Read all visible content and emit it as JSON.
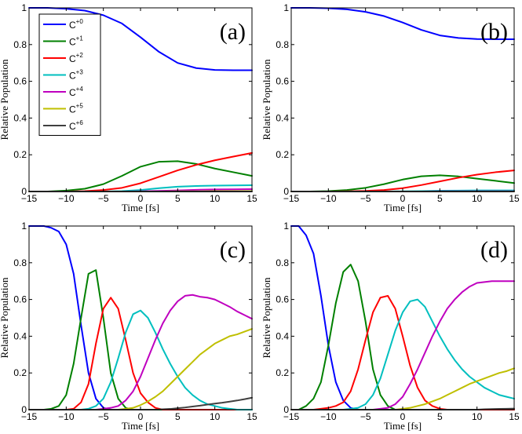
{
  "chart_data": [
    {
      "type": "line",
      "panel_label": "(a)",
      "xlabel": "Time [fs]",
      "ylabel": "Relative Population",
      "xlim": [
        -15,
        15
      ],
      "ylim": [
        0,
        1
      ],
      "xticks": [
        "−15",
        "−10",
        "−5",
        "0",
        "5",
        "10",
        "15"
      ],
      "yticks": [
        "0",
        "0.2",
        "0.4",
        "0.6",
        "0.8",
        "1"
      ],
      "legend_position": "top-left",
      "x": [
        -15,
        -12.5,
        -10,
        -7.5,
        -5,
        -2.5,
        0,
        2.5,
        5,
        7.5,
        10,
        12.5,
        15
      ],
      "series": [
        {
          "name": "C+0",
          "base": "C",
          "sup": "+0",
          "color": "#0000ff",
          "values": [
            1.0,
            1.0,
            0.995,
            0.985,
            0.96,
            0.915,
            0.84,
            0.76,
            0.7,
            0.672,
            0.662,
            0.66,
            0.66
          ]
        },
        {
          "name": "C+1",
          "base": "C",
          "sup": "+1",
          "color": "#008000",
          "values": [
            0,
            0,
            0.005,
            0.015,
            0.04,
            0.085,
            0.135,
            0.162,
            0.165,
            0.15,
            0.125,
            0.105,
            0.085
          ]
        },
        {
          "name": "C+2",
          "base": "C",
          "sup": "+2",
          "color": "#ff0000",
          "values": [
            0,
            0,
            0,
            0.002,
            0.008,
            0.02,
            0.045,
            0.08,
            0.115,
            0.145,
            0.17,
            0.19,
            0.21
          ]
        },
        {
          "name": "C+3",
          "base": "C",
          "sup": "+3",
          "color": "#00bfbf",
          "values": [
            0,
            0,
            0,
            0,
            0,
            0.002,
            0.008,
            0.018,
            0.026,
            0.03,
            0.032,
            0.033,
            0.034
          ]
        },
        {
          "name": "C+4",
          "base": "C",
          "sup": "+4",
          "color": "#bf00bf",
          "values": [
            0,
            0,
            0,
            0,
            0,
            0,
            0.001,
            0.003,
            0.006,
            0.009,
            0.011,
            0.012,
            0.013
          ]
        },
        {
          "name": "C+5",
          "base": "C",
          "sup": "+5",
          "color": "#bfbf00",
          "values": [
            0,
            0,
            0,
            0,
            0,
            0,
            0,
            0,
            0.001,
            0.001,
            0.002,
            0.002,
            0.002
          ]
        },
        {
          "name": "C+6",
          "base": "C",
          "sup": "+6",
          "color": "#404040",
          "values": [
            0,
            0,
            0,
            0,
            0,
            0,
            0,
            0,
            0,
            0,
            0,
            0,
            0
          ]
        }
      ]
    },
    {
      "type": "line",
      "panel_label": "(b)",
      "xlabel": "Time [fs]",
      "ylabel": "Relative Population",
      "xlim": [
        -15,
        15
      ],
      "ylim": [
        0,
        1
      ],
      "xticks": [
        "−15",
        "−10",
        "−5",
        "0",
        "5",
        "10",
        "15"
      ],
      "yticks": [
        "0",
        "0.2",
        "0.4",
        "0.6",
        "0.8",
        "1"
      ],
      "x": [
        -15,
        -12.5,
        -10,
        -7.5,
        -5,
        -2.5,
        0,
        2.5,
        5,
        7.5,
        10,
        12.5,
        15
      ],
      "series": [
        {
          "name": "C+0",
          "color": "#0000ff",
          "values": [
            1.0,
            1.0,
            0.998,
            0.992,
            0.978,
            0.955,
            0.92,
            0.88,
            0.85,
            0.836,
            0.83,
            0.829,
            0.829
          ]
        },
        {
          "name": "C+1",
          "color": "#008000",
          "values": [
            0,
            0,
            0.002,
            0.008,
            0.02,
            0.04,
            0.065,
            0.083,
            0.088,
            0.082,
            0.07,
            0.058,
            0.046
          ]
        },
        {
          "name": "C+2",
          "color": "#ff0000",
          "values": [
            0,
            0,
            0,
            0.001,
            0.003,
            0.008,
            0.018,
            0.035,
            0.055,
            0.075,
            0.092,
            0.105,
            0.115
          ]
        },
        {
          "name": "C+3",
          "color": "#00bfbf",
          "values": [
            0,
            0,
            0,
            0,
            0,
            0,
            0.001,
            0.002,
            0.004,
            0.005,
            0.006,
            0.006,
            0.006
          ]
        },
        {
          "name": "C+4",
          "color": "#bf00bf",
          "values": [
            0,
            0,
            0,
            0,
            0,
            0,
            0,
            0,
            0.001,
            0.001,
            0.001,
            0.001,
            0.001
          ]
        },
        {
          "name": "C+5",
          "color": "#bfbf00",
          "values": [
            0,
            0,
            0,
            0,
            0,
            0,
            0,
            0,
            0,
            0,
            0,
            0,
            0
          ]
        },
        {
          "name": "C+6",
          "color": "#404040",
          "values": [
            0,
            0,
            0,
            0,
            0,
            0,
            0,
            0,
            0,
            0,
            0,
            0,
            0
          ]
        }
      ]
    },
    {
      "type": "line",
      "panel_label": "(c)",
      "xlabel": "Time [fs]",
      "ylabel": "Relative Population",
      "xlim": [
        -15,
        15
      ],
      "ylim": [
        0,
        1
      ],
      "xticks": [
        "−15",
        "−10",
        "−5",
        "0",
        "5",
        "10",
        "15"
      ],
      "yticks": [
        "0",
        "0.2",
        "0.4",
        "0.6",
        "0.8",
        "1"
      ],
      "x": [
        -15,
        -14,
        -13,
        -12,
        -11,
        -10,
        -9,
        -8,
        -7,
        -6,
        -5,
        -4,
        -3,
        -2,
        -1,
        0,
        1,
        2,
        3,
        4,
        5,
        6,
        7,
        8,
        9,
        10,
        11,
        12,
        13,
        14,
        15
      ],
      "series": [
        {
          "name": "C+0",
          "color": "#0000ff",
          "values": [
            1.0,
            1.0,
            1.0,
            0.99,
            0.97,
            0.9,
            0.74,
            0.46,
            0.2,
            0.06,
            0.01,
            0,
            0,
            0,
            0,
            0,
            0,
            0,
            0,
            0,
            0,
            0,
            0,
            0,
            0,
            0,
            0,
            0,
            0,
            0,
            0
          ]
        },
        {
          "name": "C+1",
          "color": "#008000",
          "values": [
            0,
            0,
            0,
            0.005,
            0.02,
            0.08,
            0.25,
            0.5,
            0.74,
            0.76,
            0.5,
            0.2,
            0.06,
            0.01,
            0,
            0,
            0,
            0,
            0,
            0,
            0,
            0,
            0,
            0,
            0,
            0,
            0,
            0,
            0,
            0,
            0
          ]
        },
        {
          "name": "C+2",
          "color": "#ff0000",
          "values": [
            0,
            0,
            0,
            0,
            0,
            0,
            0.005,
            0.04,
            0.14,
            0.36,
            0.55,
            0.61,
            0.55,
            0.38,
            0.2,
            0.09,
            0.04,
            0.01,
            0,
            0,
            0,
            0,
            0,
            0,
            0,
            0,
            0,
            0,
            0,
            0,
            0
          ]
        },
        {
          "name": "C+3",
          "color": "#00bfbf",
          "values": [
            0,
            0,
            0,
            0,
            0,
            0,
            0,
            0,
            0.005,
            0.02,
            0.06,
            0.15,
            0.28,
            0.42,
            0.52,
            0.54,
            0.5,
            0.42,
            0.33,
            0.25,
            0.18,
            0.12,
            0.08,
            0.05,
            0.03,
            0.02,
            0.01,
            0.005,
            0,
            0,
            0
          ]
        },
        {
          "name": "C+4",
          "color": "#bf00bf",
          "values": [
            0,
            0,
            0,
            0,
            0,
            0,
            0,
            0,
            0,
            0,
            0.005,
            0.01,
            0.02,
            0.05,
            0.1,
            0.18,
            0.28,
            0.38,
            0.47,
            0.54,
            0.59,
            0.62,
            0.625,
            0.615,
            0.61,
            0.6,
            0.58,
            0.56,
            0.535,
            0.515,
            0.495
          ]
        },
        {
          "name": "C+5",
          "color": "#bfbf00",
          "values": [
            0,
            0,
            0,
            0,
            0,
            0,
            0,
            0,
            0,
            0,
            0,
            0,
            0,
            0.005,
            0.01,
            0.025,
            0.045,
            0.07,
            0.1,
            0.14,
            0.18,
            0.22,
            0.26,
            0.3,
            0.33,
            0.36,
            0.38,
            0.4,
            0.41,
            0.425,
            0.44
          ]
        },
        {
          "name": "C+6",
          "color": "#404040",
          "values": [
            0,
            0,
            0,
            0,
            0,
            0,
            0,
            0,
            0,
            0,
            0,
            0,
            0,
            0,
            0,
            0,
            0,
            0,
            0.002,
            0.004,
            0.008,
            0.012,
            0.017,
            0.022,
            0.028,
            0.033,
            0.038,
            0.044,
            0.05,
            0.057,
            0.065
          ]
        }
      ]
    },
    {
      "type": "line",
      "panel_label": "(d)",
      "xlabel": "Time [fs]",
      "ylabel": "Relative Population",
      "xlim": [
        -15,
        15
      ],
      "ylim": [
        0,
        1
      ],
      "xticks": [
        "−15",
        "−10",
        "−5",
        "0",
        "5",
        "10",
        "15"
      ],
      "yticks": [
        "0",
        "0.2",
        "0.4",
        "0.6",
        "0.8",
        "1"
      ],
      "x": [
        -15,
        -14,
        -13,
        -12,
        -11,
        -10,
        -9,
        -8,
        -7,
        -6,
        -5,
        -4,
        -3,
        -2,
        -1,
        0,
        1,
        2,
        3,
        4,
        5,
        6,
        7,
        8,
        9,
        10,
        11,
        12,
        13,
        14,
        15
      ],
      "series": [
        {
          "name": "C+0",
          "color": "#0000ff",
          "values": [
            1.0,
            1.0,
            0.95,
            0.85,
            0.62,
            0.35,
            0.15,
            0.05,
            0.01,
            0,
            0,
            0,
            0,
            0,
            0,
            0,
            0,
            0,
            0,
            0,
            0,
            0,
            0,
            0,
            0,
            0,
            0,
            0,
            0,
            0,
            0
          ]
        },
        {
          "name": "C+1",
          "color": "#008000",
          "values": [
            0,
            0,
            0.02,
            0.06,
            0.15,
            0.35,
            0.58,
            0.75,
            0.79,
            0.7,
            0.48,
            0.22,
            0.08,
            0.02,
            0,
            0,
            0,
            0,
            0,
            0,
            0,
            0,
            0,
            0,
            0,
            0,
            0,
            0,
            0,
            0,
            0
          ]
        },
        {
          "name": "C+2",
          "color": "#ff0000",
          "values": [
            0,
            0,
            0,
            0,
            0.005,
            0.01,
            0.02,
            0.04,
            0.1,
            0.22,
            0.38,
            0.53,
            0.61,
            0.62,
            0.55,
            0.4,
            0.24,
            0.12,
            0.05,
            0.02,
            0.005,
            0,
            0,
            0,
            0,
            0,
            0,
            0,
            0,
            0,
            0
          ]
        },
        {
          "name": "C+3",
          "color": "#00bfbf",
          "values": [
            0,
            0,
            0,
            0,
            0,
            0,
            0,
            0,
            0.005,
            0.01,
            0.03,
            0.08,
            0.17,
            0.3,
            0.43,
            0.53,
            0.59,
            0.6,
            0.56,
            0.48,
            0.4,
            0.33,
            0.27,
            0.22,
            0.18,
            0.15,
            0.12,
            0.1,
            0.08,
            0.07,
            0.06
          ]
        },
        {
          "name": "C+4",
          "color": "#bf00bf",
          "values": [
            0,
            0,
            0,
            0,
            0,
            0,
            0,
            0,
            0,
            0,
            0,
            0,
            0.005,
            0.01,
            0.03,
            0.07,
            0.14,
            0.22,
            0.31,
            0.4,
            0.48,
            0.55,
            0.6,
            0.64,
            0.67,
            0.69,
            0.695,
            0.7,
            0.7,
            0.7,
            0.7
          ]
        },
        {
          "name": "C+5",
          "color": "#bfbf00",
          "values": [
            0,
            0,
            0,
            0,
            0,
            0,
            0,
            0,
            0,
            0,
            0,
            0,
            0,
            0,
            0,
            0.005,
            0.01,
            0.02,
            0.03,
            0.045,
            0.06,
            0.08,
            0.1,
            0.12,
            0.14,
            0.155,
            0.17,
            0.185,
            0.2,
            0.21,
            0.225
          ]
        },
        {
          "name": "C+6",
          "color": "#404040",
          "values": [
            0,
            0,
            0,
            0,
            0,
            0,
            0,
            0,
            0,
            0,
            0,
            0,
            0,
            0,
            0,
            0,
            0,
            0,
            0,
            0,
            0,
            0,
            0,
            0,
            0,
            0,
            0.002,
            0.003,
            0.004,
            0.005,
            0.006
          ]
        }
      ]
    }
  ]
}
